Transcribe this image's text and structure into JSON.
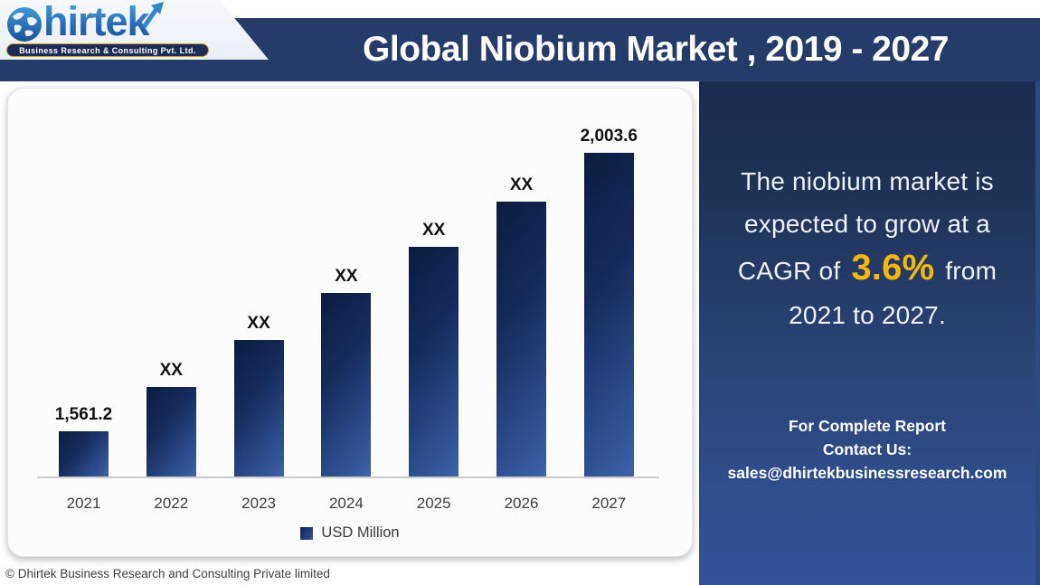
{
  "logo": {
    "brand": "hirtek",
    "tagline": "Business Research & Consulting Pvt. Ltd.",
    "globe_icon": "globe-icon",
    "arrow_icon": "growth-arrow-icon",
    "brand_color_top": "#4aa0d8",
    "brand_color_bottom": "#1c4f9f"
  },
  "header": {
    "title": "Global Niobium Market , 2019 - 2027",
    "banner_color": "#253c6b"
  },
  "chart_data": {
    "type": "bar",
    "title": "Global Niobium Market , 2019 - 2027",
    "categories": [
      "2021",
      "2022",
      "2023",
      "2024",
      "2025",
      "2026",
      "2027"
    ],
    "bar_labels": [
      "1,561.2",
      "XX",
      "XX",
      "XX",
      "XX",
      "XX",
      "2,003.6"
    ],
    "known_values_usd_million": {
      "2021": 1561.2,
      "2027": 2003.6
    },
    "estimated_values_usd_million": [
      1561.2,
      1631.6,
      1706.3,
      1781.0,
      1854.2,
      1926.1,
      2003.6
    ],
    "relative_heights": [
      0.14,
      0.277,
      0.422,
      0.567,
      0.709,
      0.849,
      1.0
    ],
    "unit": "USD Million",
    "legend": [
      {
        "label": "USD Million",
        "color": "#1e3a6e"
      }
    ],
    "legend_position": "bottom-center",
    "xlabel": "",
    "ylabel": "",
    "y_axis_shown": false,
    "gridlines": false,
    "bar_color_gradient": [
      "#0c1c40",
      "#3d63a8"
    ]
  },
  "side_panel": {
    "line1": "The niobium market is",
    "line2": "expected to grow at a",
    "cagr_prefix": "CAGR of",
    "cagr_value": "3.6%",
    "cagr_suffix": "from",
    "line4": "2021 to 2027.",
    "accent_color": "#f7b80a",
    "gradient_top": "#1c2b50",
    "gradient_bottom": "#33549b",
    "contact": {
      "line1": "For Complete Report",
      "line2": "Contact Us:",
      "email": "sales@dhirtekbusinessresearch.com"
    }
  },
  "footer": {
    "copyright": "© Dhirtek Business Research and Consulting Private limited"
  }
}
